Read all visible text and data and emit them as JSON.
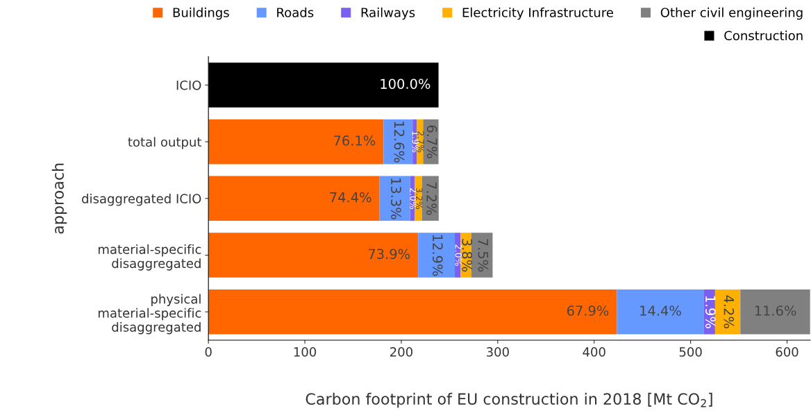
{
  "chart_data": {
    "type": "bar",
    "orientation": "horizontal",
    "stacked": true,
    "xlabel": "Carbon footprint of EU construction in 2018 [Mt CO$_{2}$]",
    "ylabel": "approach",
    "categories": [
      "ICIO",
      "total output",
      "disaggregated ICIO",
      "material-specific\ndisaggregated",
      "physical\nmaterial-specific\ndisaggregated"
    ],
    "series": [
      {
        "name": "Buildings",
        "color": "#ff6600",
        "values": [
          null,
          181.6,
          177.5,
          217.5,
          423.6
        ]
      },
      {
        "name": "Roads",
        "color": "#6699ff",
        "values": [
          null,
          30.1,
          31.7,
          38.0,
          89.9
        ]
      },
      {
        "name": "Railways",
        "color": "#7b5ff0",
        "values": [
          null,
          4.5,
          4.8,
          5.9,
          11.9
        ]
      },
      {
        "name": "Electricity Infrastructure",
        "color": "#ffb000",
        "values": [
          null,
          6.4,
          7.6,
          11.2,
          26.2
        ]
      },
      {
        "name": "Other civil engineering",
        "color": "#808080",
        "values": [
          null,
          16.0,
          17.2,
          22.1,
          72.4
        ]
      },
      {
        "name": "Construction",
        "color": "#000000",
        "values": [
          238.6,
          null,
          null,
          null,
          null
        ]
      }
    ],
    "annotations": [
      {
        "text": "100.0%",
        "x": 238.6,
        "y": "ICIO"
      },
      {
        "text": "76.1%",
        "x": 181.6,
        "y": "total output"
      },
      {
        "text": "12.6%",
        "x": 211.7,
        "y": "total output"
      },
      {
        "text": "1.9%",
        "x": 216.2,
        "y": "total output"
      },
      {
        "text": "2.7%",
        "x": 222.6,
        "y": "total output"
      },
      {
        "text": "6.7%",
        "x": 238.6,
        "y": "total output"
      },
      {
        "text": "74.4%",
        "x": 177.5,
        "y": "disaggregated ICIO"
      },
      {
        "text": "13.3%",
        "x": 209.2,
        "y": "disaggregated ICIO"
      },
      {
        "text": "2.0%",
        "x": 214.0,
        "y": "disaggregated ICIO"
      },
      {
        "text": "3.2%",
        "x": 221.6,
        "y": "disaggregated ICIO"
      },
      {
        "text": "7.2%",
        "x": 238.8,
        "y": "disaggregated ICIO"
      },
      {
        "text": "73.9%",
        "x": 217.5,
        "y": "material-specific\ndisaggregated"
      },
      {
        "text": "12.9%",
        "x": 255.5,
        "y": "material-specific\ndisaggregated"
      },
      {
        "text": "2.0%",
        "x": 261.4,
        "y": "material-specific\ndisaggregated"
      },
      {
        "text": "3.8%",
        "x": 272.6,
        "y": "material-specific\ndisaggregated"
      },
      {
        "text": "7.5%",
        "x": 294.7,
        "y": "material-specific\ndisaggregated"
      },
      {
        "text": "67.9%",
        "x": 423.6,
        "y": "physical\nmaterial-specific\ndisaggregated"
      },
      {
        "text": "14.4%",
        "x": 513.5,
        "y": "physical\nmaterial-specific\ndisaggregated"
      },
      {
        "text": "1.9%",
        "x": 525.4,
        "y": "physical\nmaterial-specific\ndisaggregated"
      },
      {
        "text": "4.2%",
        "x": 551.6,
        "y": "physical\nmaterial-specific\ndisaggregated"
      },
      {
        "text": "11.6%",
        "x": 624.0,
        "y": "physical\nmaterial-specific\ndisaggregated"
      }
    ],
    "xlim": [
      0,
      624
    ],
    "xticks": [
      0,
      100,
      200,
      300,
      400,
      500,
      600
    ],
    "grid": false,
    "legend": "top"
  }
}
